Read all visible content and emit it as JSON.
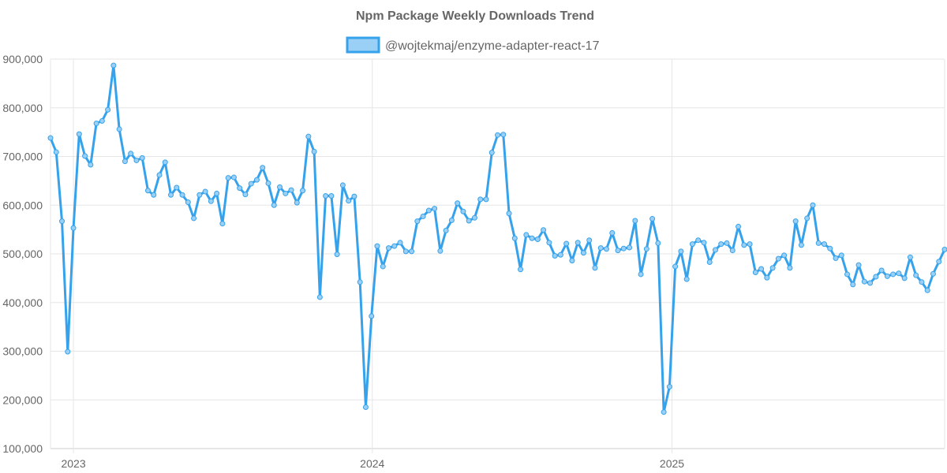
{
  "chart_data": {
    "type": "line",
    "title": "Npm Package Weekly Downloads Trend",
    "legend": {
      "position": "top",
      "entries": [
        "@wojtekmaj/enzyme-adapter-react-17"
      ]
    },
    "colors": {
      "line": "#36a2eb",
      "fill": "#9ad0f5",
      "grid": "#e6e6e6",
      "text": "#666666"
    },
    "xlabel": "",
    "ylabel": "",
    "ylim": [
      100000,
      900000
    ],
    "y_ticks": [
      100000,
      200000,
      300000,
      400000,
      500000,
      600000,
      700000,
      800000,
      900000
    ],
    "y_tick_labels": [
      "100,000",
      "200,000",
      "300,000",
      "400,000",
      "500,000",
      "600,000",
      "700,000",
      "800,000",
      "900,000"
    ],
    "x_start_date": "2022-12-04",
    "x_interval_days": 7,
    "x_ticks": [
      {
        "label": "2023",
        "date": "2023-01-01"
      },
      {
        "label": "2024",
        "date": "2024-01-01"
      },
      {
        "label": "2025",
        "date": "2025-01-01"
      }
    ],
    "series": [
      {
        "name": "@wojtekmaj/enzyme-adapter-react-17",
        "values": [
          738000,
          709000,
          567000,
          299000,
          553000,
          746000,
          701000,
          683000,
          768000,
          773000,
          796000,
          887000,
          756000,
          690000,
          706000,
          692000,
          697000,
          630000,
          621000,
          662000,
          688000,
          621000,
          636000,
          621000,
          606000,
          573000,
          621000,
          628000,
          608000,
          624000,
          562000,
          656000,
          657000,
          635000,
          622000,
          644000,
          652000,
          677000,
          645000,
          600000,
          637000,
          624000,
          631000,
          605000,
          630000,
          741000,
          710000,
          411000,
          619000,
          619000,
          499000,
          641000,
          609000,
          618000,
          442000,
          185000,
          372000,
          516000,
          474000,
          512000,
          516000,
          523000,
          505000,
          505000,
          567000,
          577000,
          589000,
          593000,
          506000,
          548000,
          569000,
          604000,
          587000,
          568000,
          574000,
          612000,
          612000,
          708000,
          744000,
          745000,
          583000,
          532000,
          468000,
          539000,
          532000,
          530000,
          549000,
          523000,
          496000,
          498000,
          521000,
          486000,
          523000,
          502000,
          528000,
          471000,
          512000,
          510000,
          543000,
          507000,
          511000,
          513000,
          568000,
          458000,
          510000,
          572000,
          522000,
          175000,
          227000,
          474000,
          505000,
          448000,
          520000,
          528000,
          523000,
          483000,
          508000,
          520000,
          522000,
          507000,
          556000,
          518000,
          520000,
          462000,
          469000,
          451000,
          471000,
          490000,
          497000,
          471000,
          567000,
          518000,
          573000,
          600000,
          522000,
          520000,
          511000,
          491000,
          497000,
          458000,
          437000,
          477000,
          443000,
          440000,
          453000,
          466000,
          454000,
          458000,
          460000,
          450000,
          493000,
          456000,
          442000,
          425000,
          459000,
          484000,
          509000
        ]
      }
    ]
  }
}
